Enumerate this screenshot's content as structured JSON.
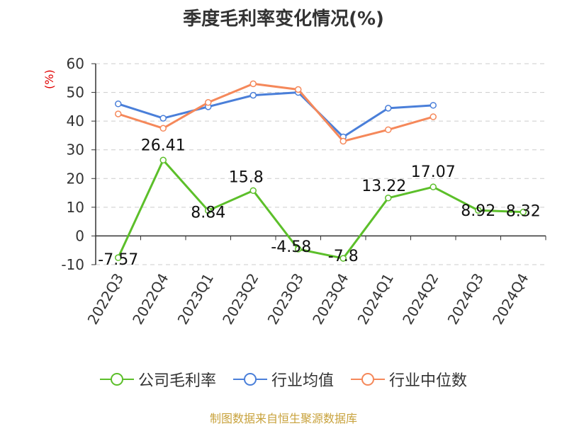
{
  "chart_data": {
    "type": "line",
    "title": "季度毛利率变化情况(%)",
    "ylabel": "(%)",
    "categories": [
      "2022Q3",
      "2022Q4",
      "2023Q1",
      "2023Q2",
      "2023Q3",
      "2023Q4",
      "2024Q1",
      "2024Q2",
      "2024Q3",
      "2024Q4"
    ],
    "ylim": [
      -10,
      60
    ],
    "yticks": [
      -10,
      0,
      10,
      20,
      30,
      40,
      50,
      60
    ],
    "grid": true,
    "legend_position": "bottom",
    "series": [
      {
        "name": "公司毛利率",
        "color": "#5cbf2a",
        "values": [
          -7.57,
          26.41,
          8.84,
          15.8,
          -4.58,
          -7.8,
          13.22,
          17.07,
          8.92,
          8.32
        ],
        "labels": [
          "-7.57",
          "26.41",
          "8.84",
          "15.8",
          "-4.58",
          "-7.8",
          "13.22",
          "17.07",
          "8.92",
          "8.32"
        ]
      },
      {
        "name": "行业均值",
        "color": "#4a7fd9",
        "values": [
          46,
          41,
          45,
          49,
          50,
          34.5,
          44.5,
          45.5,
          null,
          null
        ]
      },
      {
        "name": "行业中位数",
        "color": "#f5885a",
        "values": [
          42.5,
          37.5,
          46.5,
          53,
          51,
          33,
          37,
          41.5,
          null,
          null
        ]
      }
    ]
  },
  "source": {
    "text": "制图数据来自恒生聚源数据库",
    "color": "#c8a23c"
  }
}
